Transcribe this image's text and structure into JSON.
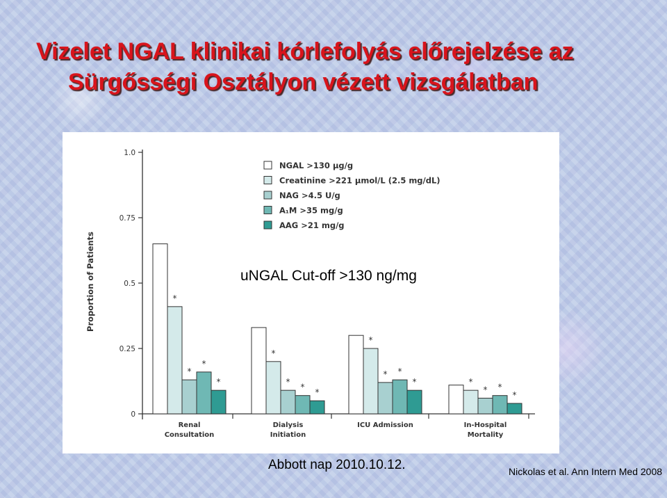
{
  "slide": {
    "title_line1": "Vizelet NGAL klinikai kórlefolyás előrejelzése az",
    "title_line2": "Sürgősségi Osztályon vézett vizsgálatban",
    "annotation": "uNGAL Cut-off >130 ng/mg",
    "source_left": "Abbott nap 2010.10.12.",
    "source_right": "Nickolas et al. Ann Intern Med 2008",
    "title_color": "#d8141c"
  },
  "chart_data": {
    "type": "bar",
    "ylabel": "Proportion of Patients",
    "ylim": [
      0,
      1.0
    ],
    "yticks": [
      0,
      0.25,
      0.5,
      0.75,
      1.0
    ],
    "ytick_labels": [
      "0",
      "0.25",
      "0.5",
      "0.75",
      "1.0"
    ],
    "legend_position": "top-center",
    "categories": [
      [
        "Renal",
        "Consultation"
      ],
      [
        "Dialysis",
        "Initiation"
      ],
      [
        "ICU Admission"
      ],
      [
        "In-Hospital",
        "Mortality"
      ]
    ],
    "series": [
      {
        "name": "NGAL >130 µg/g",
        "color": "#ffffff",
        "values": [
          0.65,
          0.33,
          0.3,
          0.11
        ],
        "significant": [
          false,
          false,
          false,
          false
        ]
      },
      {
        "name": "Creatinine >221 µmol/L (2.5 mg/dL)",
        "color": "#d4eaea",
        "values": [
          0.41,
          0.2,
          0.25,
          0.09
        ],
        "significant": [
          true,
          true,
          true,
          true
        ]
      },
      {
        "name": "NAG >4.5 U/g",
        "color": "#a8d0d0",
        "values": [
          0.13,
          0.09,
          0.12,
          0.06
        ],
        "significant": [
          true,
          true,
          true,
          true
        ]
      },
      {
        "name": "A₁M >35 mg/g",
        "color": "#6fb8b4",
        "values": [
          0.16,
          0.07,
          0.13,
          0.07
        ],
        "significant": [
          true,
          true,
          true,
          true
        ]
      },
      {
        "name": "AAG >21 mg/g",
        "color": "#2f9b93",
        "values": [
          0.09,
          0.05,
          0.09,
          0.04
        ],
        "significant": [
          true,
          true,
          true,
          true
        ]
      }
    ]
  }
}
